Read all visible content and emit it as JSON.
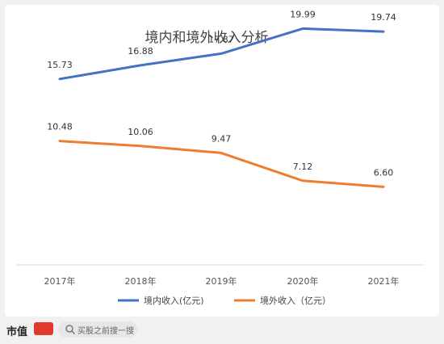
{
  "chart_data": {
    "type": "line",
    "title": "境内和境外收入分析",
    "categories": [
      "2017年",
      "2018年",
      "2019年",
      "2020年",
      "2021年"
    ],
    "series": [
      {
        "name": "境内收入(亿元)",
        "color": "#4472c4",
        "values": [
          15.73,
          16.88,
          17.87,
          19.99,
          19.74
        ],
        "labels": [
          "15.73",
          "16.88",
          "17.87",
          "19.99",
          "19.74"
        ]
      },
      {
        "name": "境外收入（亿元）",
        "color": "#ed7d31",
        "values": [
          10.48,
          10.06,
          9.47,
          7.12,
          6.6
        ],
        "labels": [
          "10.48",
          "10.06",
          "9.47",
          "7.12",
          "6.60"
        ]
      }
    ],
    "ylim": [
      0,
      22
    ],
    "grid": false,
    "legend": "bottom"
  },
  "footer": {
    "brand": "市值",
    "search_placeholder": "买股之前搜一搜",
    "search_icon": "search-icon",
    "brand_color": "#e03a2f"
  }
}
